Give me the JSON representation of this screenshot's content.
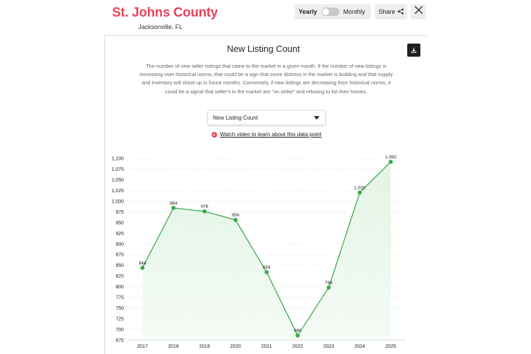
{
  "header": {
    "county": "St. Johns County",
    "city": "Jacksonville, FL"
  },
  "toggle": {
    "yearly_label": "Yearly",
    "monthly_label": "Monthly",
    "selected": "Yearly"
  },
  "share_label": "Share",
  "section": {
    "title": "New Listing Count",
    "description": "The number of new seller listings that came to the market in a given month. If the number of new listings is increasing over historical norms, that could be a sign that some distress in the market is building and that supply and inventory will shoot up in future months. Conversely, if new listings are decreasing from historical norms, it could be a signal that seller's in the market are \"on strike\" and refusing to list their homes."
  },
  "select": {
    "value": "New Listing Count"
  },
  "video_link": "Watch video to learn about this data point",
  "colors": {
    "brand": "#e8435a",
    "line": "#3aaa4e",
    "area": "#e3f4e5"
  },
  "chart_data": {
    "type": "area",
    "categories": [
      "2017",
      "2018",
      "2019",
      "2020",
      "2021",
      "2022",
      "2023",
      "2024",
      "2025"
    ],
    "series": [
      {
        "values": [
          844,
          984,
          976,
          956,
          834,
          686,
          798,
          1020,
          1092
        ]
      }
    ],
    "data_labels": [
      "844",
      "984",
      "976",
      "956",
      "834",
      "686",
      "798",
      "1,020",
      "1,092"
    ],
    "yticks": [
      "675",
      "700",
      "725",
      "750",
      "775",
      "800",
      "825",
      "850",
      "875",
      "900",
      "925",
      "950",
      "975",
      "1,000",
      "1,025",
      "1,050",
      "1,075",
      "1,100"
    ],
    "ylim": [
      675,
      1100
    ],
    "grid": true,
    "legend": "none"
  }
}
